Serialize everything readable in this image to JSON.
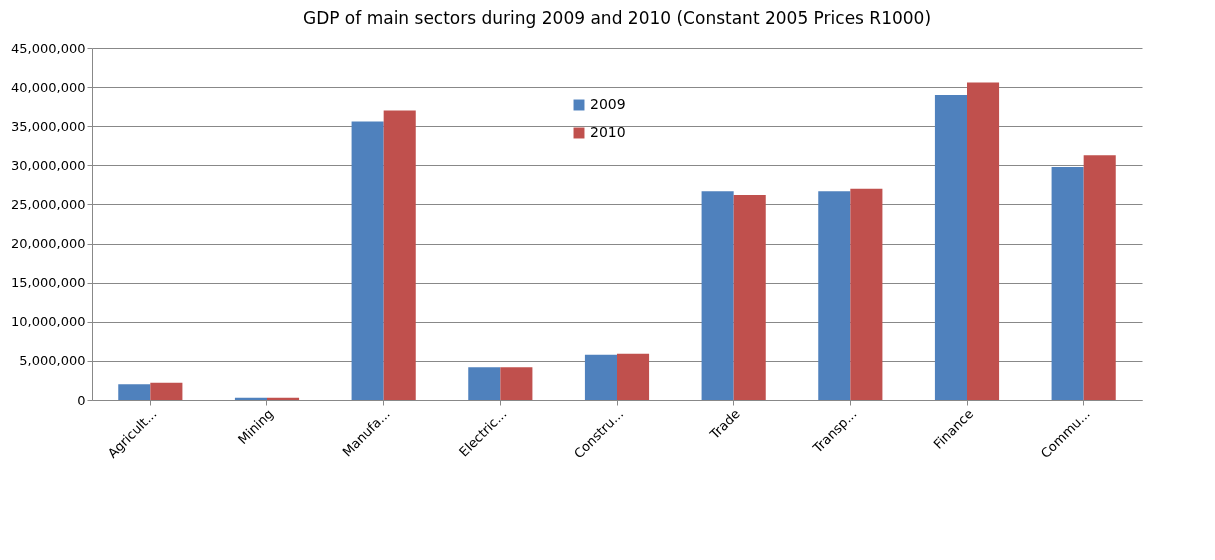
{
  "chart_data": {
    "type": "bar",
    "title": "GDP of main sectors during 2009 and 2010 (Constant 2005 Prices R1000)",
    "categories": [
      "Agricult...",
      "Mining",
      "Manufa...",
      "Electric...",
      "Constru...",
      "Trade",
      "Transp...",
      "Finance",
      "Commu..."
    ],
    "series": [
      {
        "name": "2009",
        "color": "#4f81bd",
        "values": [
          2000000,
          300000,
          35600000,
          4200000,
          5800000,
          26700000,
          26700000,
          39000000,
          29800000
        ]
      },
      {
        "name": "2010",
        "color": "#c0504d",
        "values": [
          2200000,
          300000,
          37000000,
          4200000,
          5900000,
          26200000,
          27000000,
          40600000,
          31300000
        ]
      }
    ],
    "ylim": [
      0,
      45000000
    ],
    "yticks": [
      {
        "value": 0,
        "label": "0"
      },
      {
        "value": 5000000,
        "label": "5,000,000"
      },
      {
        "value": 10000000,
        "label": "10,000,000"
      },
      {
        "value": 15000000,
        "label": "15,000,000"
      },
      {
        "value": 20000000,
        "label": "20,000,000"
      },
      {
        "value": 25000000,
        "label": "25,000,000"
      },
      {
        "value": 30000000,
        "label": "30,000,000"
      },
      {
        "value": 35000000,
        "label": "35,000,000"
      },
      {
        "value": 40000000,
        "label": "40,000,000"
      },
      {
        "value": 45000000,
        "label": "45,000,000"
      }
    ],
    "grid": "y",
    "legend": "top"
  }
}
